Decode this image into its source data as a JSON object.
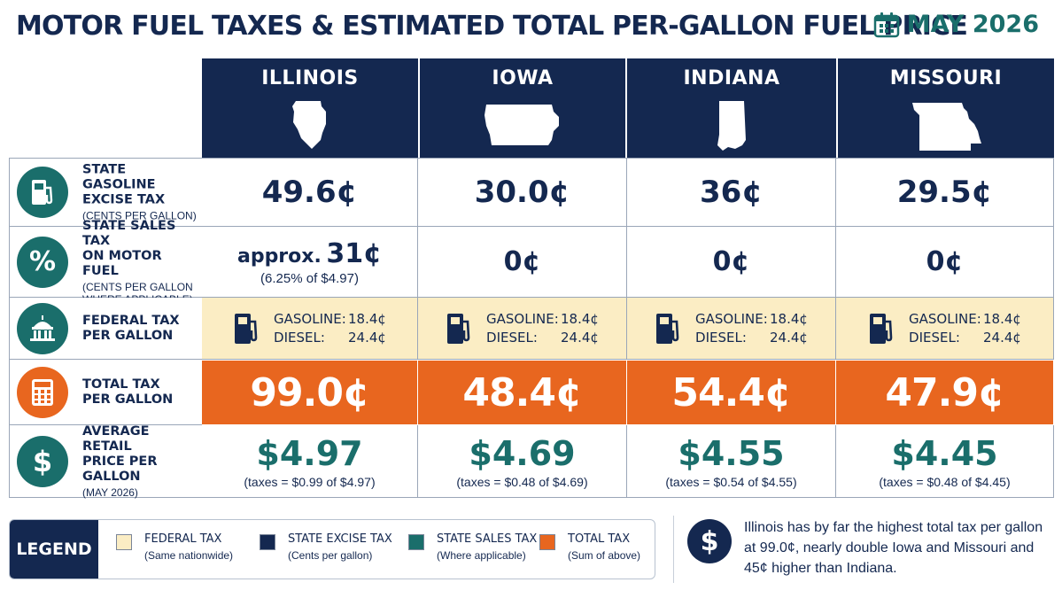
{
  "title": "MOTOR FUEL TAXES & ESTIMATED TOTAL PER-GALLON FUEL PRICE",
  "date": "MAY 2026",
  "states": [
    {
      "name": "ILLINOIS",
      "icon": "illinois-outline-icon",
      "excise": "49.6¢",
      "sales": {
        "approx": "approx.",
        "amount": "31¢",
        "detail": "(6.25% of $4.97)"
      },
      "fed_gas_label": "GASOLINE:",
      "fed_gas": "18.4¢",
      "fed_diesel_label": "DIESEL:",
      "fed_diesel": "24.4¢",
      "total": "99.0¢",
      "price": "$4.97",
      "price_note": "(taxes = $0.99 of $4.97)"
    },
    {
      "name": "IOWA",
      "icon": "iowa-outline-icon",
      "excise": "30.0¢",
      "sales": {
        "approx": "",
        "amount": "0¢",
        "detail": ""
      },
      "fed_gas_label": "GASOLINE:",
      "fed_gas": "18.4¢",
      "fed_diesel_label": "DIESEL:",
      "fed_diesel": "24.4¢",
      "total": "48.4¢",
      "price": "$4.69",
      "price_note": "(taxes = $0.48 of $4.69)"
    },
    {
      "name": "INDIANA",
      "icon": "indiana-outline-icon",
      "excise": "36¢",
      "sales": {
        "approx": "",
        "amount": "0¢",
        "detail": ""
      },
      "fed_gas_label": "GASOLINE:",
      "fed_gas": "18.4¢",
      "fed_diesel_label": "DIESEL:",
      "fed_diesel": "24.4¢",
      "total": "54.4¢",
      "price": "$4.55",
      "price_note": "(taxes = $0.54 of $4.55)"
    },
    {
      "name": "MISSOURI",
      "icon": "missouri-outline-icon",
      "excise": "29.5¢",
      "sales": {
        "approx": "",
        "amount": "0¢",
        "detail": ""
      },
      "fed_gas_label": "GASOLINE:",
      "fed_gas": "18.4¢",
      "fed_diesel_label": "DIESEL:",
      "fed_diesel": "24.4¢",
      "total": "47.9¢",
      "price": "$4.45",
      "price_note": "(taxes = $0.48 of $4.45)"
    }
  ],
  "rows": {
    "excise": {
      "label1": "STATE GASOLINE",
      "label2": "EXCISE TAX",
      "sub": "(CENTS PER GALLON)",
      "icon": "fuel-pump-icon",
      "color": "#1a6e6b"
    },
    "sales": {
      "label1": "STATE SALES TAX",
      "label2": "ON MOTOR FUEL",
      "sub1": "(CENTS PER GALLON",
      "sub2": "WHERE APPLICABLE)",
      "icon": "percent-icon",
      "icon_text": "%",
      "color": "#1a6e6b"
    },
    "federal": {
      "label1": "FEDERAL TAX",
      "label2": "PER GALLON",
      "icon": "capitol-building-icon",
      "color": "#1a6e6b"
    },
    "total": {
      "label1": "TOTAL TAX",
      "label2": "PER GALLON",
      "icon": "calculator-icon",
      "color": "#e8661f"
    },
    "price": {
      "label1": "AVERAGE RETAIL",
      "label2": "PRICE PER GALLON",
      "sub": "(MAY 2026)",
      "icon": "dollar-icon",
      "icon_text": "$",
      "color": "#1a6e6b"
    }
  },
  "legend": {
    "title": "LEGEND",
    "items": [
      {
        "name": "FEDERAL TAX",
        "desc": "(Same nationwide)",
        "color": "#fbedc4"
      },
      {
        "name": "STATE EXCISE TAX",
        "desc": "(Cents per gallon)",
        "color": "#142850"
      },
      {
        "name": "STATE SALES TAX",
        "desc": "(Where applicable)",
        "color": "#1a6e6b"
      },
      {
        "name": "TOTAL TAX",
        "desc": "(Sum of above)",
        "color": "#e8661f"
      }
    ]
  },
  "note": {
    "icon": "dollar-icon",
    "icon_text": "$",
    "text": "Illinois has by far the highest total tax per gallon at 99.0¢, nearly double Iowa and Missouri and 45¢ higher than Indiana."
  },
  "chart_data": {
    "type": "table",
    "title": "MOTOR FUEL TAXES & ESTIMATED TOTAL PER-GALLON FUEL PRICE",
    "columns": [
      "ILLINOIS",
      "IOWA",
      "INDIANA",
      "MISSOURI"
    ],
    "rows": [
      {
        "label": "STATE GASOLINE EXCISE TAX (CENTS PER GALLON)",
        "values": [
          49.6,
          30.0,
          36,
          29.5
        ]
      },
      {
        "label": "STATE SALES TAX ON MOTOR FUEL (CENTS PER GALLON WHERE APPLICABLE)",
        "values": [
          31,
          0,
          0,
          0
        ]
      },
      {
        "label": "FEDERAL TAX PER GALLON - GASOLINE",
        "values": [
          18.4,
          18.4,
          18.4,
          18.4
        ]
      },
      {
        "label": "FEDERAL TAX PER GALLON - DIESEL",
        "values": [
          24.4,
          24.4,
          24.4,
          24.4
        ]
      },
      {
        "label": "TOTAL TAX PER GALLON",
        "values": [
          99.0,
          48.4,
          54.4,
          47.9
        ]
      },
      {
        "label": "AVERAGE RETAIL PRICE PER GALLON (MAY 2026)",
        "values": [
          4.97,
          4.69,
          4.55,
          4.45
        ]
      }
    ]
  }
}
